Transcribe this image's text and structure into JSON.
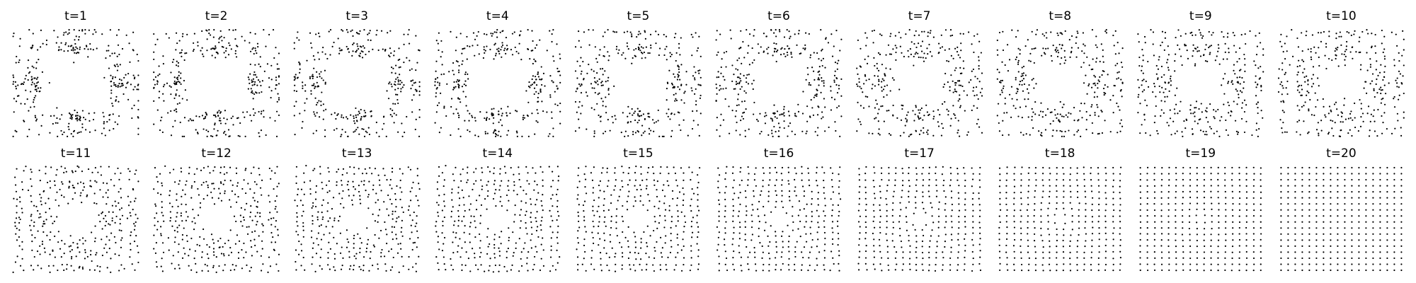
{
  "chart_data": {
    "type": "scatter",
    "layout": {
      "rows": 2,
      "cols": 10
    },
    "axes_visible": false,
    "grid": false,
    "point_color": "#000000",
    "grid_points_per_side": 18,
    "panels": [
      {
        "title": "t=1",
        "t": 1
      },
      {
        "title": "t=2",
        "t": 2
      },
      {
        "title": "t=3",
        "t": 3
      },
      {
        "title": "t=4",
        "t": 4
      },
      {
        "title": "t=5",
        "t": 5
      },
      {
        "title": "t=6",
        "t": 6
      },
      {
        "title": "t=7",
        "t": 7
      },
      {
        "title": "t=8",
        "t": 8
      },
      {
        "title": "t=9",
        "t": 9
      },
      {
        "title": "t=10",
        "t": 10
      },
      {
        "title": "t=11",
        "t": 11
      },
      {
        "title": "t=12",
        "t": 12
      },
      {
        "title": "t=13",
        "t": 13
      },
      {
        "title": "t=14",
        "t": 14
      },
      {
        "title": "t=15",
        "t": 15
      },
      {
        "title": "t=16",
        "t": 16
      },
      {
        "title": "t=17",
        "t": 17
      },
      {
        "title": "t=18",
        "t": 18
      },
      {
        "title": "t=19",
        "t": 19
      },
      {
        "title": "t=20",
        "t": 20
      }
    ]
  }
}
